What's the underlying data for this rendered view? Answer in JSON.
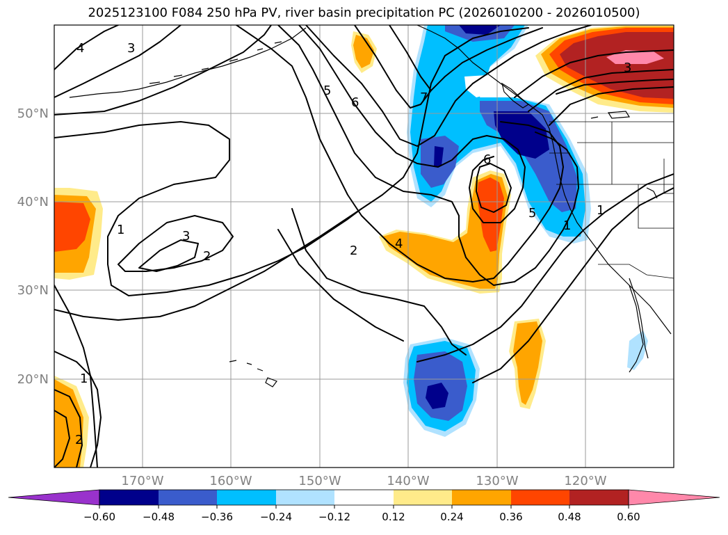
{
  "title": "2025123100 F084 250 hPa PV, river basin precipitation PC (2026010200 - 2026010500)",
  "map": {
    "lat_labels": [
      "50°N",
      "40°N",
      "30°N",
      "20°N"
    ],
    "lon_labels": [
      "170°W",
      "160°W",
      "150°W",
      "140°W",
      "130°W",
      "120°W"
    ],
    "contour_labels": [
      "4",
      "3",
      "5",
      "6",
      "7",
      "1",
      "3",
      "2",
      "2",
      "4",
      "6",
      "5",
      "1",
      "3",
      "2",
      "1",
      "1"
    ]
  },
  "colorbar": {
    "ticks": [
      "−0.60",
      "−0.48",
      "−0.36",
      "−0.24",
      "−0.12",
      "0.12",
      "0.24",
      "0.36",
      "0.48",
      "0.60"
    ],
    "colors": {
      "neg_under": "#9932cc",
      "neg_060": "#00008b",
      "neg_048": "#3a5ccc",
      "neg_036": "#00bfff",
      "neg_024": "#b0e2ff",
      "neutral": "#ffffff",
      "pos_012": "#ffeb8a",
      "pos_024": "#ffa500",
      "pos_036": "#ff4500",
      "pos_048": "#b22222",
      "pos_over": "#ff88aa"
    }
  }
}
